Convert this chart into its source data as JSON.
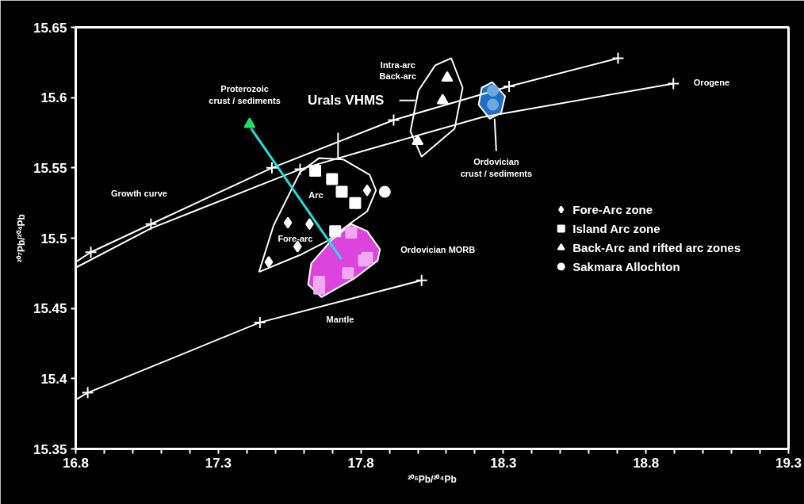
{
  "chart_data": {
    "type": "scatter",
    "xlabel": "²⁰⁶Pb/²⁰⁴Pb",
    "ylabel": "²⁰⁷Pb/²⁰⁴Pb",
    "xlim": [
      16.8,
      19.3
    ],
    "ylim": [
      15.35,
      15.65
    ],
    "xticks": [
      16.8,
      {
        "value": 16.9,
        "label": null
      },
      {
        "value": 17.0,
        "label": null
      },
      {
        "value": 17.1,
        "label": null
      },
      {
        "value": 17.2,
        "label": null
      },
      17.3,
      {
        "value": 17.4,
        "label": null
      },
      {
        "value": 17.5,
        "label": null
      },
      {
        "value": 17.6,
        "label": null
      },
      {
        "value": 17.7,
        "label": null
      },
      17.8,
      {
        "value": 17.9,
        "label": null
      },
      {
        "value": 18.0,
        "label": null
      },
      {
        "value": 18.1,
        "label": null
      },
      {
        "value": 18.2,
        "label": null
      },
      18.3,
      {
        "value": 18.4,
        "label": null
      },
      {
        "value": 18.5,
        "label": null
      },
      {
        "value": 18.6,
        "label": null
      },
      {
        "value": 18.7,
        "label": null
      },
      18.8,
      {
        "value": 18.9,
        "label": null
      },
      {
        "value": 19.0,
        "label": null
      },
      {
        "value": 19.1,
        "label": null
      },
      {
        "value": 19.2,
        "label": null
      },
      19.3
    ],
    "yticks": [
      15.35,
      15.4,
      15.45,
      15.5,
      15.55,
      15.6,
      15.65
    ],
    "legend": "right",
    "series": [
      {
        "type": "area",
        "color": "#dd44dd",
        "x": [
          17.615,
          17.626,
          17.699,
          17.766,
          17.822,
          17.867,
          17.859,
          17.775,
          17.662
        ],
        "values": [
          15.467,
          15.482,
          15.499,
          15.51,
          15.505,
          15.492,
          15.484,
          15.471,
          15.458
        ]
      },
      {
        "type": "area",
        "color": "#1f6fc4",
        "x": [
          18.261,
          18.306,
          18.292,
          18.252,
          18.213,
          18.224
        ],
        "values": [
          15.611,
          15.601,
          15.589,
          15.585,
          15.595,
          15.607
        ]
      },
      {
        "type": "area",
        "color": "#000000",
        "x": [
          17.443,
          17.494,
          17.587,
          17.654,
          17.738,
          17.831,
          17.853,
          17.822,
          17.766,
          17.682,
          17.587,
          17.443
        ],
        "values": [
          15.476,
          15.509,
          15.547,
          15.557,
          15.556,
          15.545,
          15.534,
          15.519,
          15.511,
          15.498,
          15.488,
          15.476
        ]
      },
      {
        "type": "area",
        "color": "#000000",
        "x": [
          18.117,
          18.157,
          18.129,
          18.013,
          17.974,
          18.002,
          18.061,
          18.117
        ],
        "values": [
          15.628,
          15.607,
          15.578,
          15.558,
          15.576,
          15.605,
          15.623,
          15.628
        ]
      },
      {
        "type": "line",
        "color": "#ffffff",
        "x": [
          16.8,
          16.853,
          17.064,
          17.488,
          17.915,
          18.32,
          18.702
        ],
        "values": [
          15.483,
          15.49,
          15.51,
          15.55,
          15.584,
          15.608,
          15.628
        ]
      },
      {
        "type": "line",
        "color": "#ffffff",
        "x": [
          16.8,
          17.064,
          17.587,
          17.859,
          18.224,
          18.896
        ],
        "values": [
          15.479,
          15.507,
          15.549,
          15.565,
          15.586,
          15.61
        ]
      },
      {
        "type": "line",
        "color": "#ffffff",
        "x": [
          16.8,
          16.842,
          17.446,
          18.013
        ],
        "values": [
          15.385,
          15.39,
          15.44,
          15.47
        ]
      },
      {
        "type": "line",
        "color": "#ffffff",
        "x": [
          17.72,
          17.72
        ],
        "values": [
          15.575,
          15.557
        ]
      },
      {
        "type": "line",
        "color": "#ffffff",
        "x": [
          17.935,
          17.991
        ],
        "values": [
          15.598,
          15.598
        ]
      },
      {
        "type": "line",
        "color": "#ffffff",
        "x": [
          18.275,
          18.269
        ],
        "values": [
          15.562,
          15.585
        ]
      },
      {
        "type": "line",
        "color": "#22dddd",
        "x": [
          17.732,
          17.415
        ],
        "values": [
          15.485,
          15.578
        ]
      },
      {
        "type": "scatter",
        "marker": "cross",
        "color": "#ffffff",
        "x": [
          16.853,
          17.064,
          17.488,
          17.915,
          18.32,
          18.702,
          17.587,
          18.896,
          16.842,
          17.446,
          18.013
        ],
        "values": [
          15.49,
          15.51,
          15.55,
          15.584,
          15.608,
          15.628,
          15.549,
          15.61,
          15.39,
          15.44,
          15.47
        ]
      },
      {
        "type": "scatter",
        "marker": "square",
        "color": "#f0a8f0",
        "x": [
          17.766,
          17.755,
          17.811,
          17.822,
          17.654,
          17.654
        ],
        "values": [
          15.504,
          15.475,
          15.484,
          15.486,
          15.469,
          15.464
        ]
      },
      {
        "type": "scatter",
        "marker": "circle",
        "color": "#6fa8e0",
        "x": [
          18.263,
          18.263
        ],
        "values": [
          15.605,
          15.595
        ]
      },
      {
        "type": "scatter",
        "marker": "triangle",
        "color": "#22dd66",
        "x": [
          17.41
        ],
        "values": [
          15.581
        ]
      },
      {
        "type": "scatter",
        "name": "Fore-Arc zone",
        "marker": "diamond",
        "color": "#ffffff",
        "x": [
          17.477,
          17.544,
          17.62,
          17.578,
          17.822
        ],
        "values": [
          15.483,
          15.511,
          15.51,
          15.494,
          15.534
        ]
      },
      {
        "type": "scatter",
        "name": "Island Arc zone",
        "marker": "square",
        "color": "#ffffff",
        "x": [
          17.64,
          17.699,
          17.733,
          17.78,
          17.71
        ],
        "values": [
          15.548,
          15.542,
          15.533,
          15.525,
          15.505
        ]
      },
      {
        "type": "scatter",
        "name": "Back-Arc and rifted arc zones",
        "marker": "triangle",
        "color": "#ffffff",
        "x": [
          18.103,
          18.087,
          17.999
        ],
        "values": [
          15.614,
          15.598,
          15.569
        ]
      },
      {
        "type": "scatter",
        "name": "Sakmara Allochton",
        "marker": "circle",
        "color": "#ffffff",
        "x": [
          17.884
        ],
        "values": [
          15.533
        ]
      }
    ],
    "annotations": [
      "Proterozoic\ncrust / sediments",
      "Intra-arc\nBack-arc",
      "Urals VHMS",
      "Arc",
      "Fore-arc",
      "Growth curve",
      "Ordovician MORB",
      "Mantle",
      "Orogene",
      "Ordovician\ncrust / sediments"
    ]
  }
}
